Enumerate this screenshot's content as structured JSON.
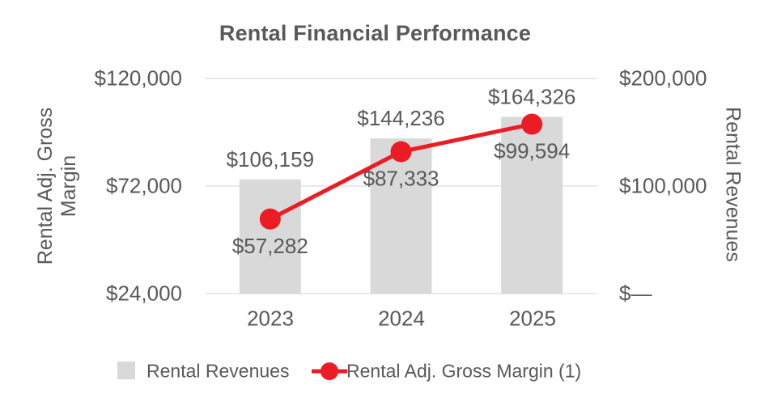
{
  "chart_data": {
    "type": "combo",
    "title": "Rental Financial Performance",
    "categories": [
      "2023",
      "2024",
      "2025"
    ],
    "series": [
      {
        "name": "Rental Revenues",
        "type": "bar",
        "axis": "right",
        "color": "#D9D9D9",
        "values": [
          106159,
          144236,
          164326
        ],
        "labels": [
          "$106,159",
          "$144,236",
          "$164,326"
        ]
      },
      {
        "name": "Rental Adj. Gross Margin (1)",
        "type": "line",
        "axis": "left",
        "color": "#EC1C24",
        "values": [
          57282,
          87333,
          99594
        ],
        "labels": [
          "$57,282",
          "$87,333",
          "$99,594"
        ]
      }
    ],
    "left_axis": {
      "label": "Rental Adj. Gross Margin",
      "ticks": [
        "$120,000",
        "$72,000",
        "$24,000"
      ],
      "min": 24000,
      "max": 120000
    },
    "right_axis": {
      "label": "Rental Revenues",
      "ticks": [
        "$200,000",
        "$100,000",
        "$—"
      ],
      "min": 0,
      "max": 200000
    },
    "legend_position": "bottom",
    "grid": true,
    "colors": {
      "bar": "#D9D9D9",
      "line": "#EC1C24",
      "text": "#595959",
      "gridline": "#E3E3E3",
      "background": "#FFFFFF"
    }
  }
}
